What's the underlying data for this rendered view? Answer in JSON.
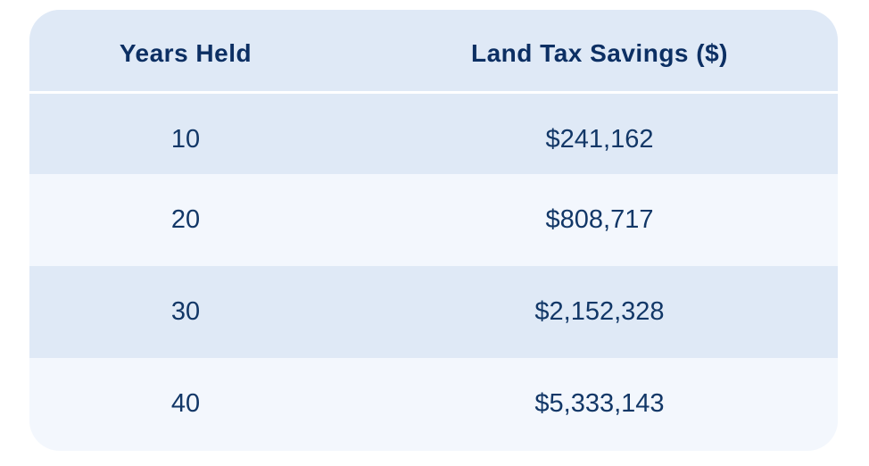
{
  "table": {
    "headers": [
      "Years Held",
      "Land Tax Savings ($)"
    ],
    "rows": [
      {
        "years": "10",
        "savings": "$241,162"
      },
      {
        "years": "20",
        "savings": "$808,717"
      },
      {
        "years": "30",
        "savings": "$2,152,328"
      },
      {
        "years": "40",
        "savings": "$5,333,143"
      }
    ]
  },
  "colors": {
    "header_bg": "#dfe9f6",
    "row_alt_bg": "#dfe9f6",
    "row_plain_bg": "#f3f7fd",
    "text": "#123767"
  }
}
